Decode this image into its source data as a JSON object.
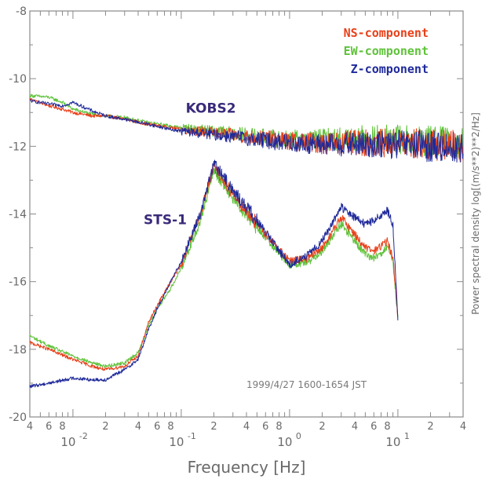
{
  "chart_data": {
    "type": "line",
    "title": "",
    "xlabel": "Frequency [Hz]",
    "ylabel": "Power spectral density log[(m/s**2)**2/Hz]",
    "x_scale": "log",
    "xlim": [
      0.004,
      40
    ],
    "ylim": [
      -20,
      -8
    ],
    "grid": false,
    "legend_position": "top-right",
    "colors": {
      "NS": "#e8401a",
      "EW": "#5fc23a",
      "Z": "#1f2a9a"
    },
    "y_ticks": [
      "-8",
      "-10",
      "-12",
      "-14",
      "-16",
      "-18",
      "-20"
    ],
    "x_tick_labels": [
      {
        "x": 0.004,
        "label": "4"
      },
      {
        "x": 0.006,
        "label": "6"
      },
      {
        "x": 0.008,
        "label": "8"
      },
      {
        "x": 0.02,
        "label": "2"
      },
      {
        "x": 0.04,
        "label": "4"
      },
      {
        "x": 0.06,
        "label": "6"
      },
      {
        "x": 0.08,
        "label": "8"
      },
      {
        "x": 0.2,
        "label": "2"
      },
      {
        "x": 0.4,
        "label": "4"
      },
      {
        "x": 0.6,
        "label": "6"
      },
      {
        "x": 0.8,
        "label": "8"
      },
      {
        "x": 2,
        "label": "2"
      },
      {
        "x": 4,
        "label": "4"
      },
      {
        "x": 6,
        "label": "6"
      },
      {
        "x": 8,
        "label": "8"
      },
      {
        "x": 20,
        "label": "2"
      },
      {
        "x": 40,
        "label": "4"
      }
    ],
    "x_decade_labels": [
      {
        "x": 0.01,
        "base": "10",
        "exp": "-2"
      },
      {
        "x": 0.1,
        "base": "10",
        "exp": "-1"
      },
      {
        "x": 1,
        "base": "10",
        "exp": "0"
      },
      {
        "x": 10,
        "base": "10",
        "exp": "1"
      }
    ],
    "legend": [
      "NS-component",
      "EW-component",
      "Z-component"
    ],
    "annotations": [
      {
        "text": "KOBS2",
        "x": 0.11,
        "y": -11.0
      },
      {
        "text": "STS-1",
        "x": 0.045,
        "y": -14.3
      }
    ],
    "note": "1999/4/27 1600-1654 JST",
    "series": [
      {
        "group": "KOBS2",
        "component": "NS",
        "x": [
          0.004,
          0.006,
          0.008,
          0.01,
          0.015,
          0.02,
          0.03,
          0.05,
          0.08,
          0.1,
          0.2,
          0.5,
          1,
          2,
          5,
          10,
          20,
          40
        ],
        "y": [
          -10.6,
          -10.8,
          -10.9,
          -11.0,
          -11.1,
          -11.1,
          -11.2,
          -11.35,
          -11.45,
          -11.5,
          -11.6,
          -11.75,
          -11.85,
          -11.9,
          -11.9,
          -11.9,
          -11.95,
          -12.0
        ]
      },
      {
        "group": "KOBS2",
        "component": "EW",
        "x": [
          0.004,
          0.006,
          0.008,
          0.01,
          0.015,
          0.02,
          0.03,
          0.05,
          0.08,
          0.1,
          0.2,
          0.5,
          1,
          2,
          5,
          10,
          20,
          40
        ],
        "y": [
          -10.5,
          -10.55,
          -10.7,
          -10.9,
          -11.05,
          -11.1,
          -11.15,
          -11.3,
          -11.4,
          -11.45,
          -11.55,
          -11.7,
          -11.8,
          -11.8,
          -11.75,
          -11.8,
          -11.85,
          -11.9
        ]
      },
      {
        "group": "KOBS2",
        "component": "Z",
        "x": [
          0.004,
          0.006,
          0.008,
          0.01,
          0.015,
          0.02,
          0.03,
          0.05,
          0.08,
          0.1,
          0.2,
          0.5,
          1,
          2,
          5,
          10,
          20,
          40
        ],
        "y": [
          -10.65,
          -10.75,
          -10.8,
          -10.7,
          -10.95,
          -11.1,
          -11.2,
          -11.35,
          -11.5,
          -11.55,
          -11.65,
          -11.8,
          -11.9,
          -11.95,
          -11.95,
          -11.95,
          -12.0,
          -12.05
        ]
      },
      {
        "group": "STS-1",
        "component": "NS",
        "x": [
          0.004,
          0.006,
          0.01,
          0.015,
          0.02,
          0.03,
          0.04,
          0.05,
          0.06,
          0.08,
          0.1,
          0.15,
          0.2,
          0.3,
          0.5,
          1,
          1.5,
          2,
          3,
          4,
          5,
          6,
          8,
          9,
          10
        ],
        "y": [
          -17.8,
          -18.0,
          -18.3,
          -18.5,
          -18.6,
          -18.5,
          -18.2,
          -17.2,
          -16.7,
          -16.0,
          -15.5,
          -14.0,
          -12.6,
          -13.4,
          -14.3,
          -15.4,
          -15.3,
          -15.0,
          -14.1,
          -14.6,
          -15.0,
          -15.1,
          -14.8,
          -15.3,
          -17.0
        ]
      },
      {
        "group": "STS-1",
        "component": "EW",
        "x": [
          0.004,
          0.006,
          0.01,
          0.015,
          0.02,
          0.03,
          0.04,
          0.05,
          0.06,
          0.08,
          0.1,
          0.15,
          0.2,
          0.3,
          0.5,
          1,
          1.5,
          2,
          3,
          4,
          5,
          6,
          8,
          9,
          10
        ],
        "y": [
          -17.6,
          -17.9,
          -18.2,
          -18.4,
          -18.5,
          -18.4,
          -18.1,
          -17.3,
          -16.8,
          -16.2,
          -15.6,
          -14.2,
          -12.7,
          -13.5,
          -14.4,
          -15.5,
          -15.4,
          -15.1,
          -14.3,
          -14.8,
          -15.2,
          -15.3,
          -15.0,
          -15.4,
          -17.1
        ]
      },
      {
        "group": "STS-1",
        "component": "Z",
        "x": [
          0.004,
          0.006,
          0.01,
          0.015,
          0.02,
          0.03,
          0.04,
          0.05,
          0.06,
          0.08,
          0.1,
          0.15,
          0.2,
          0.3,
          0.5,
          1,
          1.5,
          2,
          3,
          4,
          5,
          6,
          8,
          9,
          10
        ],
        "y": [
          -19.1,
          -19.0,
          -18.85,
          -18.9,
          -18.9,
          -18.6,
          -18.3,
          -17.4,
          -16.8,
          -16.0,
          -15.4,
          -14.0,
          -12.5,
          -13.3,
          -14.2,
          -15.5,
          -15.2,
          -14.8,
          -13.8,
          -14.1,
          -14.3,
          -14.2,
          -13.9,
          -14.3,
          -17.2
        ]
      }
    ]
  }
}
